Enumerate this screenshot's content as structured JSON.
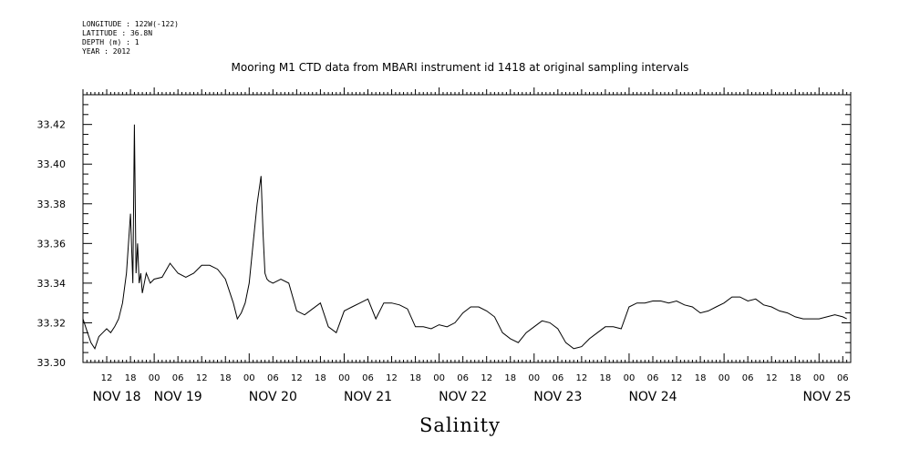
{
  "header": {
    "longitude": "LONGITUDE : 122W(-122)",
    "latitude": "LATITUDE : 36.8N",
    "depth": "DEPTH (m) : 1",
    "year": "YEAR : 2012"
  },
  "chart_data": {
    "type": "line",
    "title": "Mooring M1 CTD data from MBARI instrument id 1418 at original sampling intervals",
    "ylabel": "Salinity",
    "xlabel": "",
    "ylim": [
      33.3,
      33.435
    ],
    "yticks": [
      "33.30",
      "33.32",
      "33.34",
      "33.36",
      "33.38",
      "33.40",
      "33.42"
    ],
    "xlim_hours": [
      6,
      200
    ],
    "hour_ticks": [
      "12",
      "18",
      "00",
      "06",
      "12",
      "18",
      "00",
      "06",
      "12",
      "18",
      "00",
      "06",
      "12",
      "18",
      "00",
      "06",
      "12",
      "18",
      "00",
      "06",
      "12",
      "18",
      "00",
      "06",
      "12",
      "18",
      "00",
      "06",
      "12",
      "18",
      "00",
      "06"
    ],
    "day_ticks": [
      "NOV 18",
      "NOV 19",
      "NOV 20",
      "NOV 21",
      "NOV 22",
      "NOV 23",
      "NOV 24",
      "NOV 25"
    ],
    "grid": false,
    "series": [
      {
        "x_hours": [
          6,
          7,
          8,
          9,
          10,
          11,
          12,
          13,
          14,
          15,
          16,
          17,
          18,
          18.6,
          19,
          19.4,
          19.8,
          20.2,
          20.6,
          21,
          22,
          23,
          24,
          26,
          28,
          30,
          32,
          34,
          36,
          38,
          40,
          42,
          44,
          45,
          46,
          47,
          48,
          49,
          50,
          51,
          51.5,
          52,
          52.5,
          53,
          54,
          56,
          58,
          60,
          62,
          64,
          66,
          68,
          70,
          72,
          74,
          76,
          78,
          80,
          82,
          84,
          86,
          88,
          90,
          92,
          94,
          96,
          98,
          100,
          102,
          104,
          106,
          108,
          110,
          112,
          114,
          116,
          118,
          120,
          122,
          124,
          126,
          128,
          130,
          132,
          134,
          136,
          138,
          140,
          142,
          144,
          146,
          148,
          150,
          152,
          154,
          156,
          158,
          160,
          162,
          164,
          166,
          168,
          170,
          172,
          174,
          176,
          178,
          180,
          182,
          184,
          186,
          188,
          190,
          192,
          194,
          196,
          198,
          199
        ],
        "values": [
          33.322,
          33.316,
          33.31,
          33.307,
          33.313,
          33.315,
          33.317,
          33.315,
          33.318,
          33.322,
          33.33,
          33.345,
          33.375,
          33.34,
          33.42,
          33.345,
          33.36,
          33.34,
          33.345,
          33.335,
          33.345,
          33.34,
          33.342,
          33.343,
          33.35,
          33.345,
          33.343,
          33.345,
          33.349,
          33.349,
          33.347,
          33.342,
          33.33,
          33.322,
          33.325,
          33.33,
          33.34,
          33.36,
          33.38,
          33.394,
          33.365,
          33.345,
          33.342,
          33.341,
          33.34,
          33.342,
          33.34,
          33.326,
          33.324,
          33.327,
          33.33,
          33.318,
          33.315,
          33.326,
          33.328,
          33.33,
          33.332,
          33.322,
          33.33,
          33.33,
          33.329,
          33.327,
          33.318,
          33.318,
          33.317,
          33.319,
          33.318,
          33.32,
          33.325,
          33.328,
          33.328,
          33.326,
          33.323,
          33.315,
          33.312,
          33.31,
          33.315,
          33.318,
          33.321,
          33.32,
          33.317,
          33.31,
          33.307,
          33.308,
          33.312,
          33.315,
          33.318,
          33.318,
          33.317,
          33.328,
          33.33,
          33.33,
          33.331,
          33.331,
          33.33,
          33.331,
          33.329,
          33.328,
          33.325,
          33.326,
          33.328,
          33.33,
          33.333,
          33.333,
          33.331,
          33.332,
          33.329,
          33.328,
          33.326,
          33.325,
          33.323,
          33.322,
          33.322,
          33.322,
          33.323,
          33.324,
          33.323,
          33.322
        ]
      }
    ]
  }
}
